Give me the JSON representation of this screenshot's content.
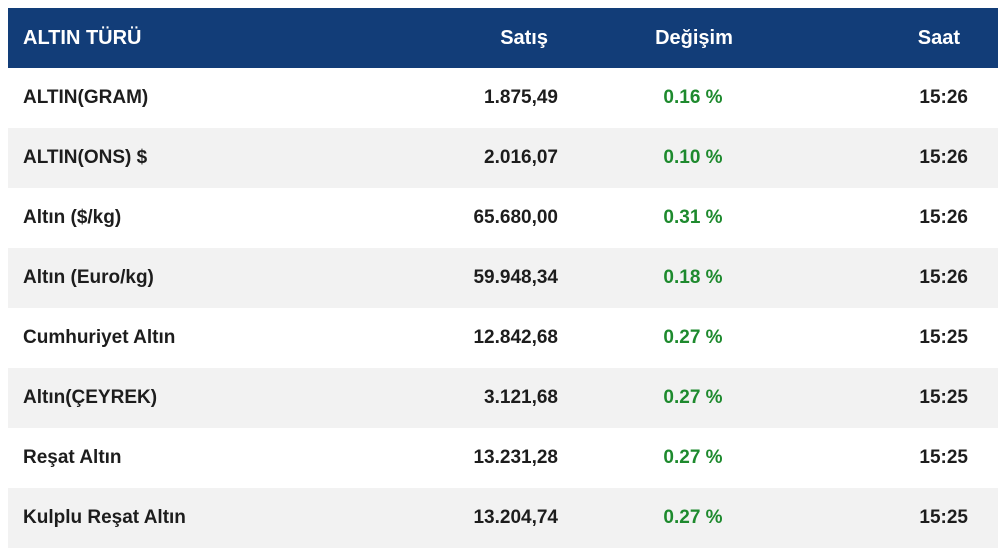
{
  "header": {
    "type_label": "ALTIN TÜRÜ",
    "sell_label": "Satış",
    "change_label": "Değişim",
    "time_label": "Saat"
  },
  "rows": [
    {
      "name": "ALTIN(GRAM)",
      "sell": "1.875,49",
      "change": "0.16 %",
      "time": "15:26"
    },
    {
      "name": "ALTIN(ONS) $",
      "sell": "2.016,07",
      "change": "0.10 %",
      "time": "15:26"
    },
    {
      "name": "Altın ($/kg)",
      "sell": "65.680,00",
      "change": "0.31 %",
      "time": "15:26"
    },
    {
      "name": "Altın (Euro/kg)",
      "sell": "59.948,34",
      "change": "0.18 %",
      "time": "15:26"
    },
    {
      "name": "Cumhuriyet Altın",
      "sell": "12.842,68",
      "change": "0.27 %",
      "time": "15:25"
    },
    {
      "name": "Altın(ÇEYREK)",
      "sell": "3.121,68",
      "change": "0.27 %",
      "time": "15:25"
    },
    {
      "name": "Reşat Altın",
      "sell": "13.231,28",
      "change": "0.27 %",
      "time": "15:25"
    },
    {
      "name": "Kulplu Reşat Altın",
      "sell": "13.204,74",
      "change": "0.27 %",
      "time": "15:25"
    }
  ],
  "colors": {
    "header_bg": "#123d78",
    "positive_change": "#1e8a2e",
    "alt_row_bg": "#f2f2f2"
  }
}
